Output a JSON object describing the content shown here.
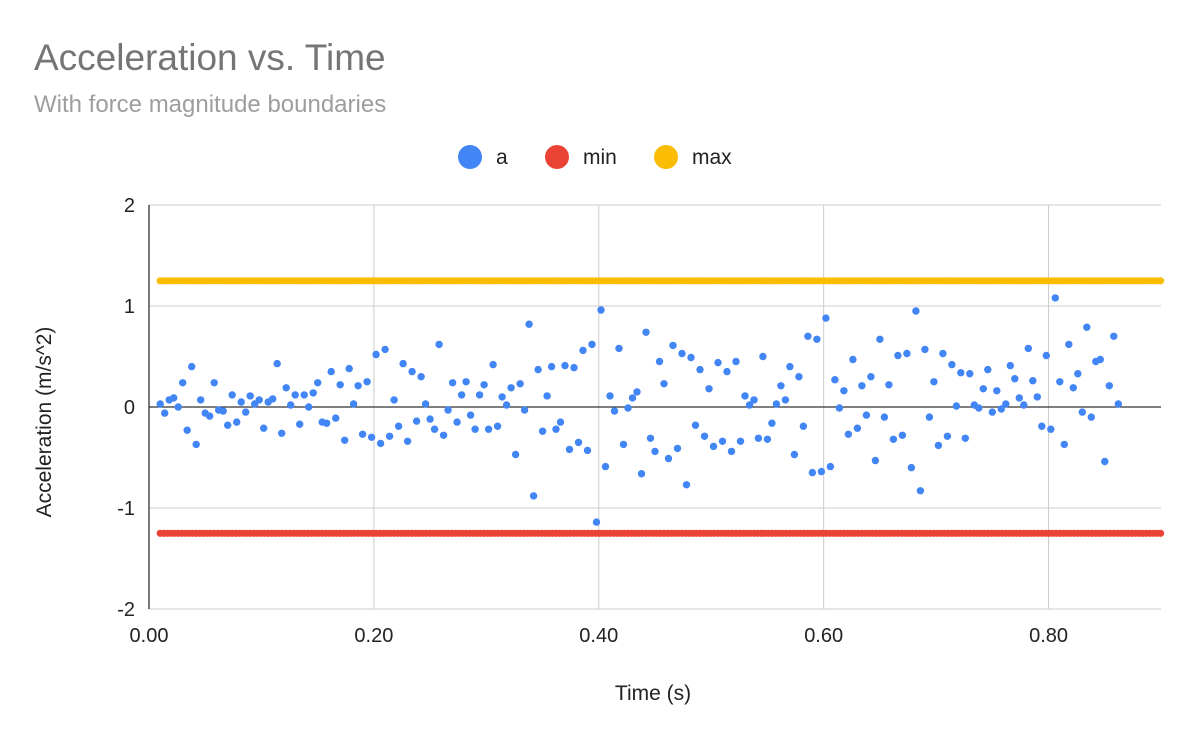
{
  "chart_data": {
    "type": "scatter",
    "title": "Acceleration vs. Time",
    "subtitle": "With force magnitude boundaries",
    "xlabel": "Time (s)",
    "ylabel": "Acceleration (m/s^2)",
    "xlim": [
      0,
      0.9
    ],
    "ylim": [
      -2,
      2
    ],
    "x_ticks": [
      0,
      0.2,
      0.4,
      0.6,
      0.8
    ],
    "x_tick_labels": [
      "0.00",
      "0.20",
      "0.40",
      "0.60",
      "0.80"
    ],
    "y_ticks": [
      -2,
      -1,
      0,
      1,
      2
    ],
    "y_tick_labels": [
      "-2",
      "-1",
      "0",
      "1",
      "2"
    ],
    "grid": true,
    "legend_position": "top-center",
    "series": [
      {
        "name": "a",
        "color": "#4285f4",
        "points": [
          [
            0.01,
            0.03
          ],
          [
            0.014,
            -0.06
          ],
          [
            0.018,
            0.07
          ],
          [
            0.022,
            0.09
          ],
          [
            0.026,
            0.0
          ],
          [
            0.03,
            0.24
          ],
          [
            0.034,
            -0.23
          ],
          [
            0.038,
            0.4
          ],
          [
            0.042,
            -0.37
          ],
          [
            0.046,
            0.07
          ],
          [
            0.05,
            -0.06
          ],
          [
            0.054,
            -0.09
          ],
          [
            0.058,
            0.24
          ],
          [
            0.062,
            -0.03
          ],
          [
            0.066,
            -0.04
          ],
          [
            0.07,
            -0.18
          ],
          [
            0.074,
            0.12
          ],
          [
            0.078,
            -0.15
          ],
          [
            0.082,
            0.05
          ],
          [
            0.086,
            -0.05
          ],
          [
            0.09,
            0.11
          ],
          [
            0.094,
            0.03
          ],
          [
            0.098,
            0.07
          ],
          [
            0.102,
            -0.21
          ],
          [
            0.106,
            0.05
          ],
          [
            0.11,
            0.08
          ],
          [
            0.114,
            0.43
          ],
          [
            0.118,
            -0.26
          ],
          [
            0.122,
            0.19
          ],
          [
            0.126,
            0.02
          ],
          [
            0.13,
            0.12
          ],
          [
            0.134,
            -0.17
          ],
          [
            0.138,
            0.12
          ],
          [
            0.142,
            0.0
          ],
          [
            0.146,
            0.14
          ],
          [
            0.15,
            0.24
          ],
          [
            0.154,
            -0.15
          ],
          [
            0.158,
            -0.16
          ],
          [
            0.162,
            0.35
          ],
          [
            0.166,
            -0.11
          ],
          [
            0.17,
            0.22
          ],
          [
            0.174,
            -0.33
          ],
          [
            0.178,
            0.38
          ],
          [
            0.182,
            0.03
          ],
          [
            0.186,
            0.21
          ],
          [
            0.19,
            -0.27
          ],
          [
            0.194,
            0.25
          ],
          [
            0.198,
            -0.3
          ],
          [
            0.202,
            0.52
          ],
          [
            0.206,
            -0.36
          ],
          [
            0.21,
            0.57
          ],
          [
            0.214,
            -0.29
          ],
          [
            0.218,
            0.07
          ],
          [
            0.222,
            -0.19
          ],
          [
            0.226,
            0.43
          ],
          [
            0.23,
            -0.34
          ],
          [
            0.234,
            0.35
          ],
          [
            0.238,
            -0.14
          ],
          [
            0.242,
            0.3
          ],
          [
            0.246,
            0.03
          ],
          [
            0.25,
            -0.12
          ],
          [
            0.254,
            -0.22
          ],
          [
            0.258,
            0.62
          ],
          [
            0.262,
            -0.28
          ],
          [
            0.266,
            -0.03
          ],
          [
            0.27,
            0.24
          ],
          [
            0.274,
            -0.15
          ],
          [
            0.278,
            0.12
          ],
          [
            0.282,
            0.25
          ],
          [
            0.286,
            -0.08
          ],
          [
            0.29,
            -0.22
          ],
          [
            0.294,
            0.12
          ],
          [
            0.298,
            0.22
          ],
          [
            0.302,
            -0.22
          ],
          [
            0.306,
            0.42
          ],
          [
            0.31,
            -0.19
          ],
          [
            0.314,
            0.1
          ],
          [
            0.318,
            0.02
          ],
          [
            0.322,
            0.19
          ],
          [
            0.326,
            -0.47
          ],
          [
            0.33,
            0.23
          ],
          [
            0.334,
            -0.03
          ],
          [
            0.338,
            0.82
          ],
          [
            0.342,
            -0.88
          ],
          [
            0.346,
            0.37
          ],
          [
            0.35,
            -0.24
          ],
          [
            0.354,
            0.11
          ],
          [
            0.358,
            0.4
          ],
          [
            0.362,
            -0.22
          ],
          [
            0.366,
            -0.15
          ],
          [
            0.37,
            0.41
          ],
          [
            0.374,
            -0.42
          ],
          [
            0.378,
            0.39
          ],
          [
            0.382,
            -0.35
          ],
          [
            0.386,
            0.56
          ],
          [
            0.39,
            -0.43
          ],
          [
            0.394,
            0.62
          ],
          [
            0.398,
            -1.14
          ],
          [
            0.402,
            0.96
          ],
          [
            0.406,
            -0.59
          ],
          [
            0.41,
            0.11
          ],
          [
            0.414,
            -0.04
          ],
          [
            0.418,
            0.58
          ],
          [
            0.422,
            -0.37
          ],
          [
            0.426,
            -0.01
          ],
          [
            0.43,
            0.09
          ],
          [
            0.434,
            0.15
          ],
          [
            0.438,
            -0.66
          ],
          [
            0.442,
            0.74
          ],
          [
            0.446,
            -0.31
          ],
          [
            0.45,
            -0.44
          ],
          [
            0.454,
            0.45
          ],
          [
            0.458,
            0.23
          ],
          [
            0.462,
            -0.51
          ],
          [
            0.466,
            0.61
          ],
          [
            0.47,
            -0.41
          ],
          [
            0.474,
            0.53
          ],
          [
            0.478,
            -0.77
          ],
          [
            0.482,
            0.49
          ],
          [
            0.486,
            -0.18
          ],
          [
            0.49,
            0.37
          ],
          [
            0.494,
            -0.29
          ],
          [
            0.498,
            0.18
          ],
          [
            0.502,
            -0.39
          ],
          [
            0.506,
            0.44
          ],
          [
            0.51,
            -0.34
          ],
          [
            0.514,
            0.35
          ],
          [
            0.518,
            -0.44
          ],
          [
            0.522,
            0.45
          ],
          [
            0.526,
            -0.34
          ],
          [
            0.53,
            0.11
          ],
          [
            0.534,
            0.02
          ],
          [
            0.538,
            0.07
          ],
          [
            0.542,
            -0.31
          ],
          [
            0.546,
            0.5
          ],
          [
            0.55,
            -0.32
          ],
          [
            0.554,
            -0.16
          ],
          [
            0.558,
            0.03
          ],
          [
            0.562,
            0.21
          ],
          [
            0.566,
            0.07
          ],
          [
            0.57,
            0.4
          ],
          [
            0.574,
            -0.47
          ],
          [
            0.578,
            0.3
          ],
          [
            0.582,
            -0.19
          ],
          [
            0.586,
            0.7
          ],
          [
            0.59,
            -0.65
          ],
          [
            0.594,
            0.67
          ],
          [
            0.598,
            -0.64
          ],
          [
            0.602,
            0.88
          ],
          [
            0.606,
            -0.59
          ],
          [
            0.61,
            0.27
          ],
          [
            0.614,
            -0.01
          ],
          [
            0.618,
            0.16
          ],
          [
            0.622,
            -0.27
          ],
          [
            0.626,
            0.47
          ],
          [
            0.63,
            -0.21
          ],
          [
            0.634,
            0.21
          ],
          [
            0.638,
            -0.08
          ],
          [
            0.642,
            0.3
          ],
          [
            0.646,
            -0.53
          ],
          [
            0.65,
            0.67
          ],
          [
            0.654,
            -0.1
          ],
          [
            0.658,
            0.22
          ],
          [
            0.662,
            -0.32
          ],
          [
            0.666,
            0.51
          ],
          [
            0.67,
            -0.28
          ],
          [
            0.674,
            0.53
          ],
          [
            0.678,
            -0.6
          ],
          [
            0.682,
            0.95
          ],
          [
            0.686,
            -0.83
          ],
          [
            0.69,
            0.57
          ],
          [
            0.694,
            -0.1
          ],
          [
            0.698,
            0.25
          ],
          [
            0.702,
            -0.38
          ],
          [
            0.706,
            0.53
          ],
          [
            0.71,
            -0.29
          ],
          [
            0.714,
            0.42
          ],
          [
            0.718,
            0.01
          ],
          [
            0.722,
            0.34
          ],
          [
            0.726,
            -0.31
          ],
          [
            0.73,
            0.33
          ],
          [
            0.734,
            0.02
          ],
          [
            0.738,
            -0.01
          ],
          [
            0.742,
            0.18
          ],
          [
            0.746,
            0.37
          ],
          [
            0.75,
            -0.05
          ],
          [
            0.754,
            0.16
          ],
          [
            0.758,
            -0.02
          ],
          [
            0.762,
            0.03
          ],
          [
            0.766,
            0.41
          ],
          [
            0.77,
            0.28
          ],
          [
            0.774,
            0.09
          ],
          [
            0.778,
            0.02
          ],
          [
            0.782,
            0.58
          ],
          [
            0.786,
            0.26
          ],
          [
            0.79,
            0.1
          ],
          [
            0.794,
            -0.19
          ],
          [
            0.798,
            0.51
          ],
          [
            0.802,
            -0.22
          ],
          [
            0.806,
            1.08
          ],
          [
            0.81,
            0.25
          ],
          [
            0.814,
            -0.37
          ],
          [
            0.818,
            0.62
          ],
          [
            0.822,
            0.19
          ],
          [
            0.826,
            0.33
          ],
          [
            0.83,
            -0.05
          ],
          [
            0.834,
            0.79
          ],
          [
            0.838,
            -0.1
          ],
          [
            0.842,
            0.45
          ],
          [
            0.846,
            0.47
          ],
          [
            0.85,
            -0.54
          ],
          [
            0.854,
            0.21
          ],
          [
            0.858,
            0.7
          ],
          [
            0.862,
            0.03
          ]
        ]
      },
      {
        "name": "min",
        "color": "#ea4335",
        "constant": -1.25,
        "x_start": 0.01,
        "x_end": 0.9
      },
      {
        "name": "max",
        "color": "#fbbc04",
        "constant": 1.25,
        "x_start": 0.01,
        "x_end": 0.9
      }
    ]
  }
}
